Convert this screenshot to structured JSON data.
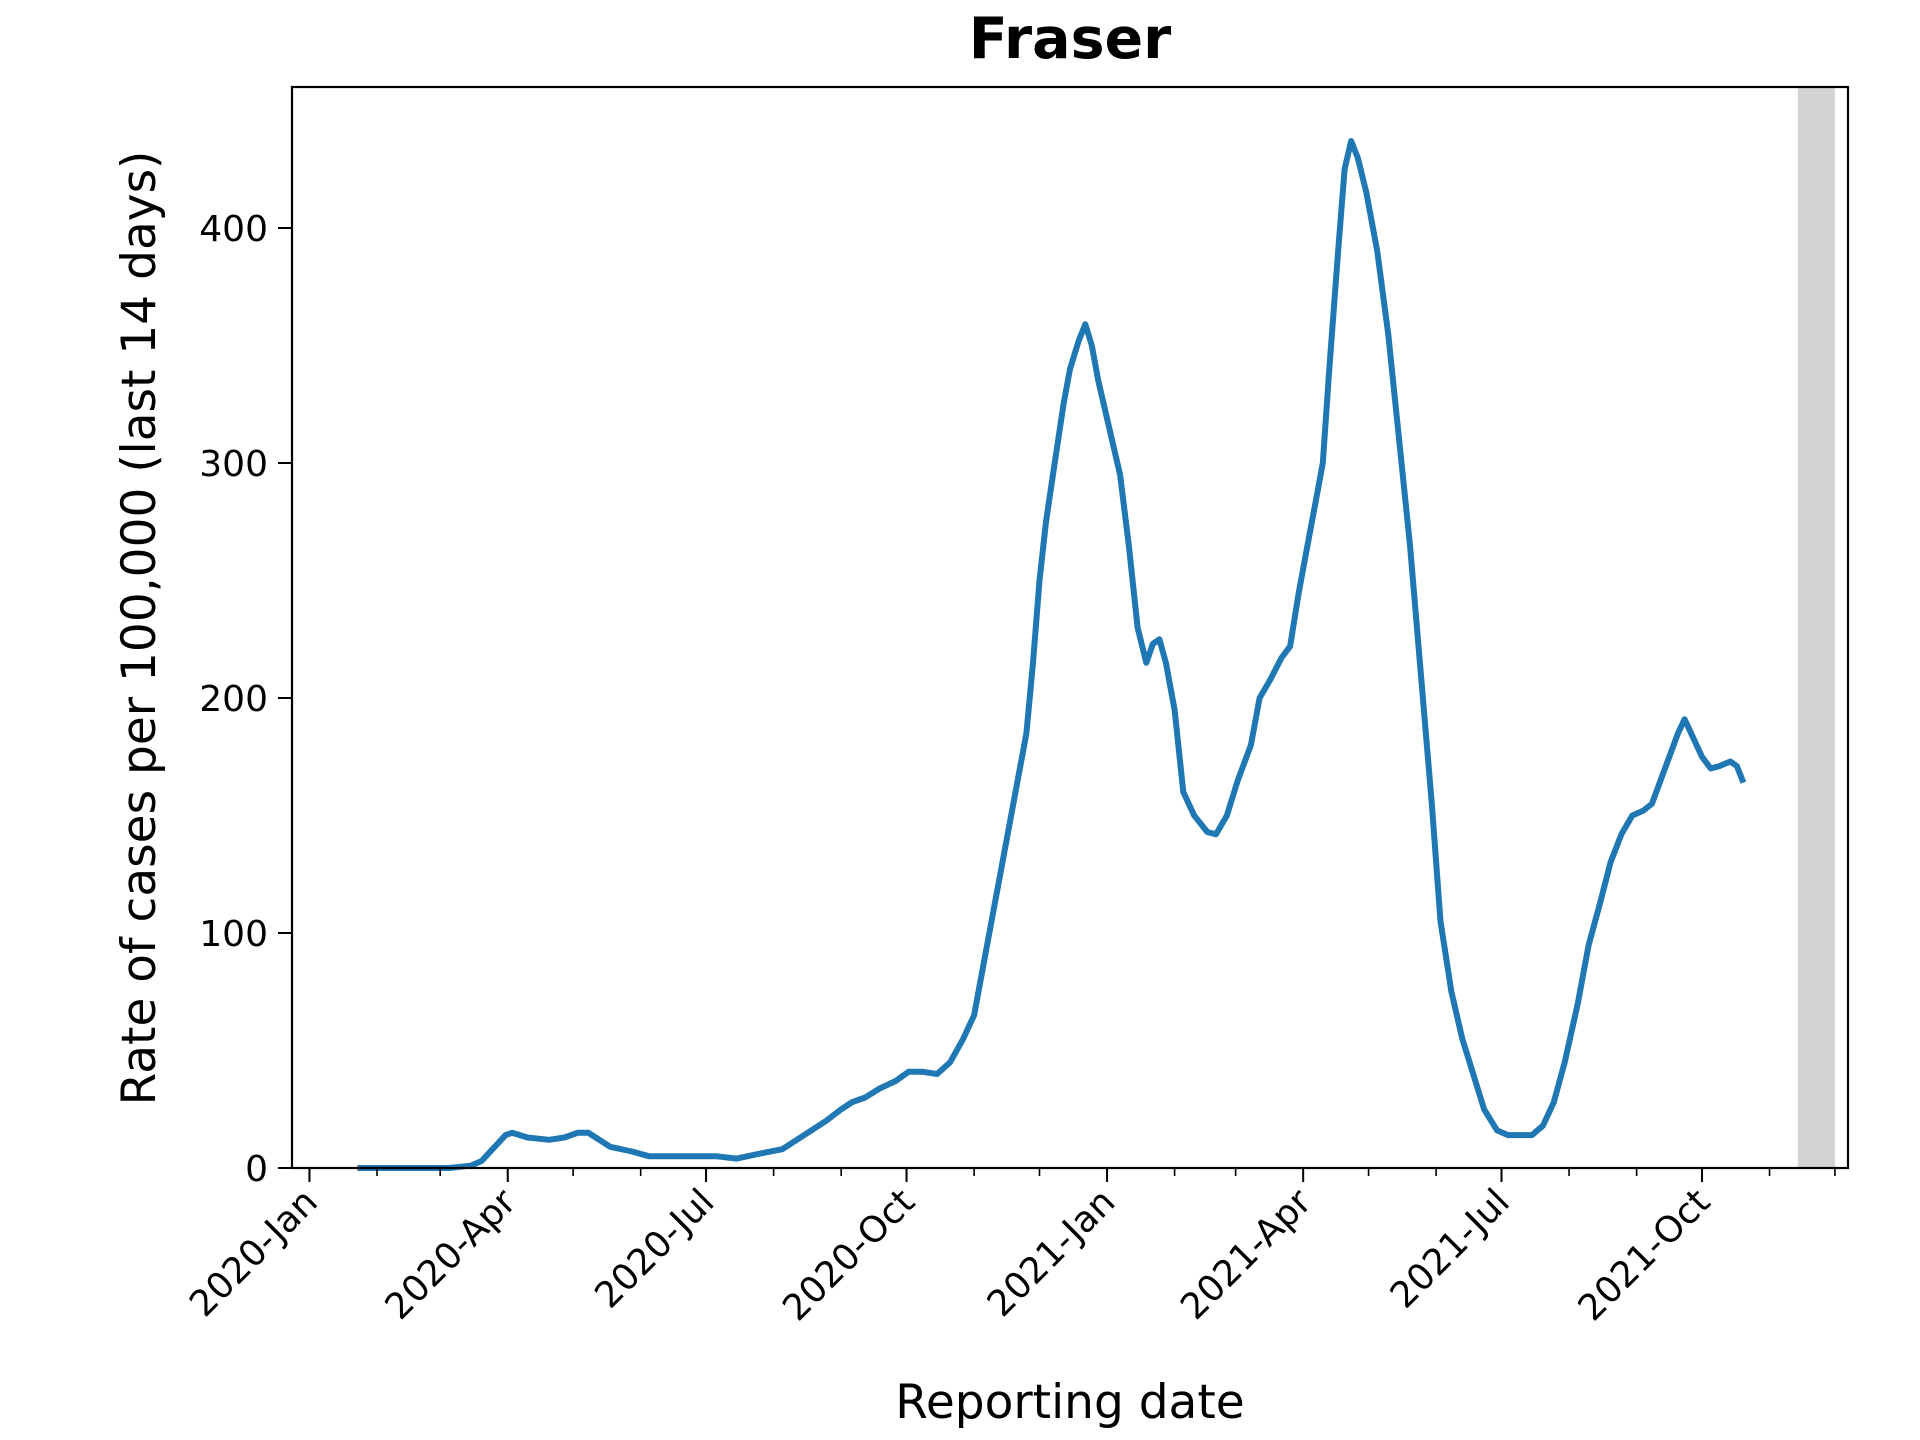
{
  "chart_data": {
    "type": "line",
    "title": "Fraser",
    "xlabel": "Reporting date",
    "ylabel": "Rate of cases per 100,000 (last 14 days)",
    "xlim": [
      "2019-12-24",
      "2021-12-07"
    ],
    "ylim": [
      0,
      460
    ],
    "x_ticks": [
      {
        "date": "2020-01-01",
        "label": "2020-Jan"
      },
      {
        "date": "2020-04-01",
        "label": "2020-Apr"
      },
      {
        "date": "2020-07-01",
        "label": "2020-Jul"
      },
      {
        "date": "2020-10-01",
        "label": "2020-Oct"
      },
      {
        "date": "2021-01-01",
        "label": "2021-Jan"
      },
      {
        "date": "2021-04-01",
        "label": "2021-Apr"
      },
      {
        "date": "2021-07-01",
        "label": "2021-Jul"
      },
      {
        "date": "2021-10-01",
        "label": "2021-Oct"
      }
    ],
    "y_ticks": [
      {
        "value": 0,
        "label": "0"
      },
      {
        "value": 100,
        "label": "100"
      },
      {
        "value": 200,
        "label": "200"
      },
      {
        "value": 300,
        "label": "300"
      },
      {
        "value": 400,
        "label": "400"
      }
    ],
    "grid": false,
    "shaded_region": {
      "start": "2021-11-14",
      "end": "2021-12-01",
      "color": "#d3d3d3"
    },
    "series": [
      {
        "color": "#1f77b4",
        "points": [
          [
            "2020-01-23",
            0
          ],
          [
            "2020-02-15",
            0
          ],
          [
            "2020-03-05",
            0
          ],
          [
            "2020-03-15",
            1
          ],
          [
            "2020-03-20",
            3
          ],
          [
            "2020-03-25",
            8
          ],
          [
            "2020-03-31",
            14
          ],
          [
            "2020-04-03",
            15
          ],
          [
            "2020-04-10",
            13
          ],
          [
            "2020-04-20",
            12
          ],
          [
            "2020-04-27",
            13
          ],
          [
            "2020-05-03",
            15
          ],
          [
            "2020-05-08",
            15
          ],
          [
            "2020-05-13",
            12
          ],
          [
            "2020-05-18",
            9
          ],
          [
            "2020-05-28",
            7
          ],
          [
            "2020-06-05",
            5
          ],
          [
            "2020-06-15",
            5
          ],
          [
            "2020-06-25",
            5
          ],
          [
            "2020-07-06",
            5
          ],
          [
            "2020-07-15",
            4
          ],
          [
            "2020-07-25",
            6
          ],
          [
            "2020-08-05",
            8
          ],
          [
            "2020-08-15",
            14
          ],
          [
            "2020-08-25",
            20
          ],
          [
            "2020-09-01",
            25
          ],
          [
            "2020-09-06",
            28
          ],
          [
            "2020-09-12",
            30
          ],
          [
            "2020-09-19",
            34
          ],
          [
            "2020-09-26",
            37
          ],
          [
            "2020-10-02",
            41
          ],
          [
            "2020-10-08",
            41
          ],
          [
            "2020-10-15",
            40
          ],
          [
            "2020-10-21",
            45
          ],
          [
            "2020-10-27",
            55
          ],
          [
            "2020-11-01",
            65
          ],
          [
            "2020-11-05",
            85
          ],
          [
            "2020-11-10",
            110
          ],
          [
            "2020-11-15",
            135
          ],
          [
            "2020-11-20",
            160
          ],
          [
            "2020-11-25",
            185
          ],
          [
            "2020-11-28",
            215
          ],
          [
            "2020-12-01",
            250
          ],
          [
            "2020-12-04",
            275
          ],
          [
            "2020-12-08",
            300
          ],
          [
            "2020-12-12",
            325
          ],
          [
            "2020-12-15",
            340
          ],
          [
            "2020-12-19",
            352
          ],
          [
            "2020-12-22",
            359
          ],
          [
            "2020-12-25",
            350
          ],
          [
            "2020-12-28",
            335
          ],
          [
            "2021-01-02",
            315
          ],
          [
            "2021-01-07",
            295
          ],
          [
            "2021-01-11",
            265
          ],
          [
            "2021-01-15",
            230
          ],
          [
            "2021-01-19",
            215
          ],
          [
            "2021-01-22",
            223
          ],
          [
            "2021-01-25",
            225
          ],
          [
            "2021-01-28",
            215
          ],
          [
            "2021-02-01",
            195
          ],
          [
            "2021-02-05",
            160
          ],
          [
            "2021-02-10",
            150
          ],
          [
            "2021-02-16",
            143
          ],
          [
            "2021-02-20",
            142
          ],
          [
            "2021-02-25",
            150
          ],
          [
            "2021-03-02",
            165
          ],
          [
            "2021-03-08",
            180
          ],
          [
            "2021-03-12",
            200
          ],
          [
            "2021-03-17",
            208
          ],
          [
            "2021-03-22",
            217
          ],
          [
            "2021-03-26",
            222
          ],
          [
            "2021-03-30",
            245
          ],
          [
            "2021-04-03",
            265
          ],
          [
            "2021-04-07",
            285
          ],
          [
            "2021-04-10",
            300
          ],
          [
            "2021-04-13",
            340
          ],
          [
            "2021-04-17",
            390
          ],
          [
            "2021-04-20",
            425
          ],
          [
            "2021-04-23",
            437
          ],
          [
            "2021-04-26",
            430
          ],
          [
            "2021-04-30",
            415
          ],
          [
            "2021-05-05",
            390
          ],
          [
            "2021-05-10",
            355
          ],
          [
            "2021-05-15",
            310
          ],
          [
            "2021-05-20",
            265
          ],
          [
            "2021-05-25",
            210
          ],
          [
            "2021-05-30",
            155
          ],
          [
            "2021-06-03",
            105
          ],
          [
            "2021-06-08",
            75
          ],
          [
            "2021-06-13",
            55
          ],
          [
            "2021-06-18",
            40
          ],
          [
            "2021-06-23",
            25
          ],
          [
            "2021-06-29",
            16
          ],
          [
            "2021-07-04",
            14
          ],
          [
            "2021-07-09",
            14
          ],
          [
            "2021-07-15",
            14
          ],
          [
            "2021-07-20",
            18
          ],
          [
            "2021-07-25",
            28
          ],
          [
            "2021-07-30",
            45
          ],
          [
            "2021-08-05",
            70
          ],
          [
            "2021-08-10",
            95
          ],
          [
            "2021-08-15",
            112
          ],
          [
            "2021-08-20",
            130
          ],
          [
            "2021-08-25",
            142
          ],
          [
            "2021-08-30",
            150
          ],
          [
            "2021-09-04",
            152
          ],
          [
            "2021-09-08",
            155
          ],
          [
            "2021-09-12",
            165
          ],
          [
            "2021-09-16",
            175
          ],
          [
            "2021-09-20",
            185
          ],
          [
            "2021-09-23",
            191
          ],
          [
            "2021-09-27",
            183
          ],
          [
            "2021-10-01",
            175
          ],
          [
            "2021-10-05",
            170
          ],
          [
            "2021-10-09",
            171
          ],
          [
            "2021-10-14",
            173
          ],
          [
            "2021-10-17",
            171
          ],
          [
            "2021-10-20",
            164
          ]
        ]
      }
    ]
  }
}
